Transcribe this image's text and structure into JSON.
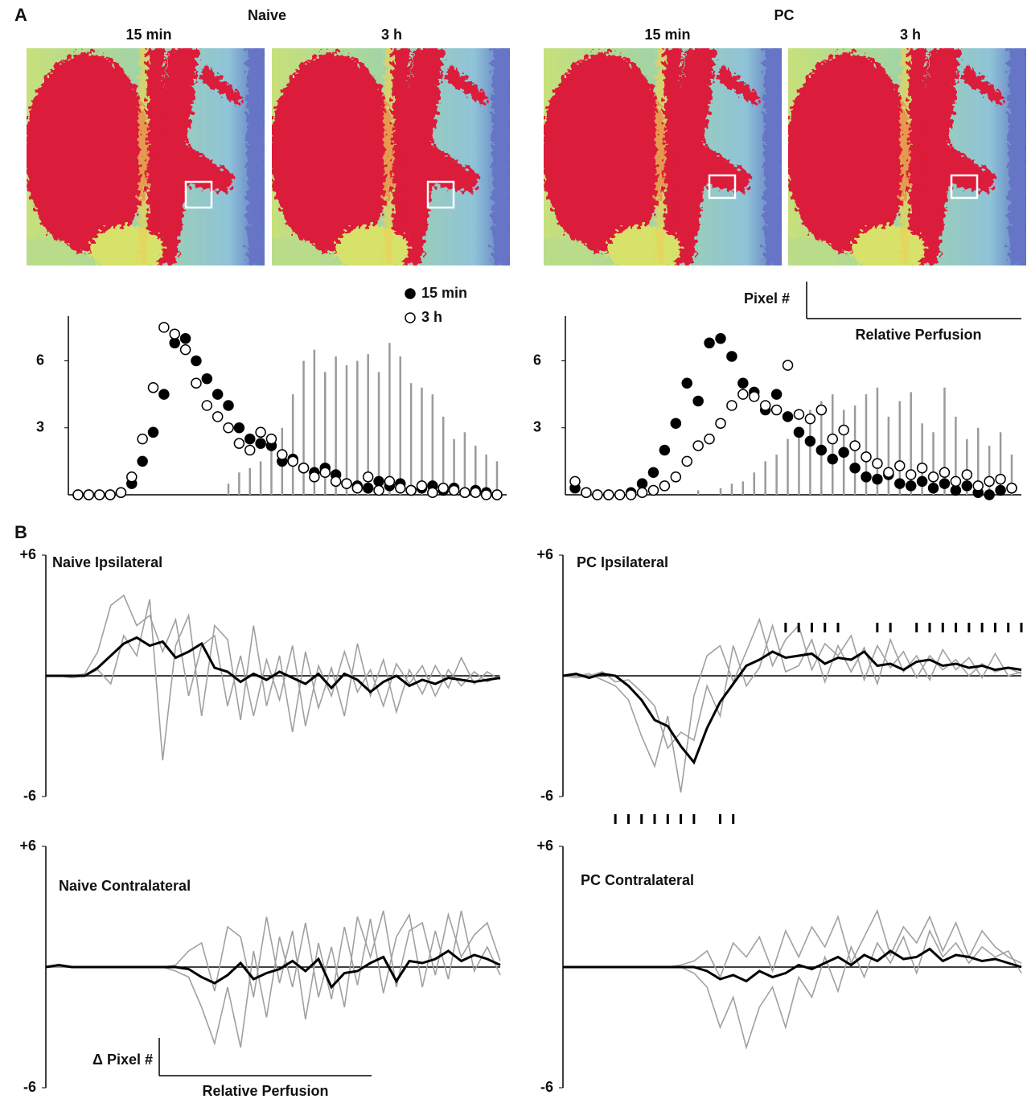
{
  "panel_labels": [
    "A",
    "B"
  ],
  "images": {
    "groups": [
      {
        "title": "Naive",
        "frames": [
          "15 min",
          "3 h"
        ]
      },
      {
        "title": "PC",
        "frames": [
          "15 min",
          "3 h"
        ]
      }
    ]
  },
  "scale_bars": [
    {
      "y_label": "Pixel #",
      "x_label": "Relative Perfusion"
    },
    {
      "y_label": "Δ Pixel #",
      "x_label": "Relative Perfusion"
    }
  ],
  "chart_data": [
    {
      "type": "scatter",
      "legend": "top right",
      "ylim": [
        0,
        8
      ],
      "yticks": [
        6,
        3
      ],
      "series": [
        {
          "name": "15 min",
          "color": "#000000",
          "marker": "filled",
          "values": [
            0,
            0,
            0,
            0,
            0.1,
            0.5,
            1.5,
            2.8,
            4.5,
            6.8,
            7,
            6,
            5.2,
            4.5,
            4,
            3,
            2.5,
            2.3,
            2.2,
            1.5,
            1.6,
            1.2,
            1,
            1.2,
            0.9,
            0.5,
            0.4,
            0.3,
            0.6,
            0.4,
            0.5,
            0.2,
            0.3,
            0.4,
            0.2,
            0.3,
            0.1,
            0.2,
            0.1,
            0
          ]
        },
        {
          "name": "3 h",
          "color": "#000000",
          "marker": "open",
          "values": [
            0,
            0,
            0,
            0,
            0.1,
            0.8,
            2.5,
            4.8,
            7.5,
            7.2,
            6.5,
            5,
            4,
            3.5,
            3,
            2.3,
            2,
            2.8,
            2.5,
            1.8,
            1.5,
            1.2,
            0.8,
            1,
            0.6,
            0.5,
            0.3,
            0.8,
            0.2,
            0.6,
            0.3,
            0.2,
            0.4,
            0.1,
            0.3,
            0.2,
            0.1,
            0.1,
            0,
            0
          ]
        }
      ],
      "bars": {
        "color": "#9a9a9a",
        "values": [
          0,
          0,
          0,
          0,
          0,
          0,
          0,
          0,
          0,
          0,
          0,
          0,
          0,
          0,
          0.5,
          1,
          1.2,
          1.5,
          2,
          3,
          4.5,
          6,
          6.5,
          5.5,
          6.2,
          5.8,
          6,
          6.3,
          5.5,
          6.8,
          6.2,
          5,
          4.8,
          4.5,
          3.5,
          2.5,
          2.8,
          2.2,
          1.8,
          1.5
        ]
      }
    },
    {
      "type": "scatter",
      "ylim": [
        0,
        8
      ],
      "yticks": [
        6,
        3
      ],
      "series": [
        {
          "color": "#000000",
          "marker": "filled",
          "values": [
            0.3,
            0.1,
            0,
            0,
            0,
            0.1,
            0.5,
            1,
            2,
            3.2,
            5,
            4.2,
            6.8,
            7,
            6.2,
            5,
            4.6,
            3.8,
            4.5,
            3.5,
            2.8,
            2.4,
            2,
            1.6,
            1.9,
            1.2,
            0.8,
            0.7,
            0.9,
            0.5,
            0.4,
            0.6,
            0.3,
            0.5,
            0.2,
            0.4,
            0.1,
            0,
            0.2,
            0.3
          ]
        },
        {
          "color": "#000000",
          "marker": "open",
          "values": [
            0.6,
            0.1,
            0,
            0,
            0,
            0,
            0.1,
            0.2,
            0.4,
            0.8,
            1.5,
            2.2,
            2.5,
            3.2,
            4,
            4.5,
            4.4,
            4,
            3.8,
            5.8,
            3.6,
            3.4,
            3.8,
            2.5,
            2.9,
            2.2,
            1.7,
            1.4,
            1,
            1.3,
            0.9,
            1.2,
            0.8,
            1,
            0.6,
            0.9,
            0.4,
            0.6,
            0.7,
            0.3
          ]
        }
      ],
      "bars": {
        "color": "#9a9a9a",
        "values": [
          0,
          0,
          0,
          0,
          0,
          0,
          0,
          0,
          0,
          0,
          0,
          0.2,
          0,
          0.3,
          0.5,
          0.6,
          1,
          1.5,
          1.8,
          2.5,
          3,
          3.8,
          4.2,
          4.5,
          3.8,
          4,
          4.5,
          4.8,
          3.5,
          4.2,
          4.6,
          3.2,
          2.8,
          4.8,
          3.5,
          2.5,
          3,
          2.2,
          2.8,
          1.8
        ]
      }
    },
    {
      "type": "line",
      "title": "Naive Ipsilateral",
      "ylim": [
        -6,
        6
      ],
      "yticks": [
        {
          "value": 6,
          "label": "+6"
        },
        -6
      ],
      "series": [
        {
          "color": "#a0a0a0",
          "values": [
            0,
            0,
            0,
            0.1,
            1.2,
            3.5,
            4,
            2.5,
            3,
            1.2,
            2.8,
            -1,
            1.5,
            2,
            -1.5,
            1,
            -2,
            0.8,
            -1.2,
            1.5,
            -2.5,
            0.5,
            -1,
            1.2,
            -0.8,
            0.3,
            -1.5,
            0.6,
            -0.4,
            0.5,
            -1,
            0.3,
            -0.5,
            0.2,
            -0.3,
            0
          ]
        },
        {
          "color": "#a0a0a0",
          "values": [
            0,
            0,
            -0.1,
            0,
            0.3,
            -0.4,
            2,
            1,
            3.8,
            -4.2,
            1.5,
            3,
            -2,
            2.5,
            1.8,
            -2.2,
            2.5,
            -1.5,
            1,
            -2.8,
            1.2,
            -1.6,
            0.4,
            -2,
            1.6,
            -1,
            0.8,
            -1.8,
            0.3,
            -0.9,
            0.5,
            -0.6,
            0.9,
            -0.4,
            0.2,
            -0.2
          ]
        },
        {
          "color": "#000000",
          "values": [
            0,
            0,
            0,
            0,
            0.4,
            1,
            1.6,
            1.9,
            1.5,
            1.7,
            0.9,
            1.2,
            1.6,
            0.4,
            0.2,
            -0.3,
            0.1,
            -0.2,
            0.2,
            -0.1,
            -0.4,
            0.1,
            -0.6,
            0.1,
            -0.2,
            -0.8,
            -0.3,
            0,
            -0.5,
            -0.2,
            -0.4,
            -0.1,
            -0.2,
            -0.3,
            -0.2,
            -0.1
          ]
        }
      ]
    },
    {
      "type": "line",
      "title": "PC Ipsilateral",
      "ylim": [
        -6,
        6
      ],
      "yticks": [
        {
          "value": 6,
          "label": "+6"
        },
        -6
      ],
      "significance": {
        "above": [
          17,
          18,
          19,
          20,
          21,
          24,
          25,
          27,
          28,
          29,
          30,
          31,
          32,
          33,
          34,
          35
        ],
        "below": [
          4,
          5,
          6,
          7,
          8,
          9,
          10,
          12,
          13
        ]
      },
      "series": [
        {
          "color": "#a0a0a0",
          "values": [
            0,
            0,
            0.1,
            -0.2,
            -0.5,
            -1.2,
            -3,
            -4.5,
            -2,
            -5.8,
            -1,
            1,
            1.5,
            -0.3,
            1.2,
            2.8,
            0.5,
            1.8,
            2.5,
            0.3,
            1.6,
            1,
            2,
            -0.2,
            1.5,
            0.4,
            1.2,
            -0.1,
            1,
            0.3,
            0.8,
            0,
            0.6,
            0.2,
            0.4,
            0.1
          ]
        },
        {
          "color": "#a0a0a0",
          "values": [
            0,
            -0.1,
            0,
            0.2,
            -0.3,
            -0.2,
            -0.8,
            -1.5,
            -3.6,
            -2.8,
            -3.2,
            -0.5,
            -2,
            1.5,
            -0.5,
            0.4,
            2.5,
            0.2,
            0.5,
            1.8,
            -0.3,
            1.5,
            0.2,
            1.4,
            -0.4,
            1.8,
            0.2,
            1,
            -0.2,
            1.3,
            0.3,
            0.9,
            -0.1,
            1.1,
            0,
            0.2
          ]
        },
        {
          "color": "#000000",
          "values": [
            0,
            0.1,
            -0.1,
            0.1,
            0,
            -0.5,
            -1.2,
            -2.2,
            -2.5,
            -3.5,
            -4.3,
            -2.6,
            -1.3,
            -0.4,
            0.5,
            0.8,
            1.2,
            0.9,
            1,
            1.1,
            0.6,
            0.9,
            0.8,
            1.2,
            0.5,
            0.6,
            0.3,
            0.7,
            0.8,
            0.5,
            0.6,
            0.4,
            0.5,
            0.3,
            0.4,
            0.3
          ]
        }
      ]
    },
    {
      "type": "line",
      "title": "Naive Contralateral",
      "ylim": [
        -6,
        6
      ],
      "yticks": [
        {
          "value": 6,
          "label": "+6"
        },
        -6
      ],
      "series": [
        {
          "color": "#a0a0a0",
          "values": [
            0,
            0,
            0,
            0,
            0,
            0,
            0,
            0,
            0,
            0,
            -0.2,
            -0.5,
            -2,
            -3.8,
            -1,
            -4,
            0.8,
            -2.5,
            1.5,
            -1,
            2.2,
            -1.5,
            1,
            -2,
            2.5,
            0.5,
            2.8,
            -1,
            1.8,
            2.2,
            -0.4,
            2.6,
            0.5,
            1.6,
            2.2,
            0.3
          ]
        },
        {
          "color": "#a0a0a0",
          "values": [
            0,
            0,
            0,
            0,
            0,
            0,
            0,
            0,
            0,
            0,
            0.1,
            0.8,
            1.2,
            -1.2,
            2,
            1.5,
            -1.5,
            2.5,
            -0.8,
            1.8,
            -2.6,
            1.2,
            -1.6,
            2,
            -0.9,
            2.4,
            -1.3,
            1.5,
            2.6,
            -1,
            1.8,
            -0.6,
            2.8,
            -0.2,
            1,
            -0.4
          ]
        },
        {
          "color": "#000000",
          "values": [
            0,
            0.1,
            0,
            0,
            0,
            0,
            0,
            0,
            0,
            0,
            0,
            -0.1,
            -0.5,
            -0.8,
            -0.4,
            0.2,
            -0.6,
            -0.3,
            -0.1,
            0.3,
            -0.2,
            0.4,
            -1,
            -0.3,
            -0.2,
            0.2,
            0.5,
            -0.7,
            0.3,
            0.2,
            0.4,
            0.8,
            0.3,
            0.6,
            0.4,
            0.1
          ]
        }
      ]
    },
    {
      "type": "line",
      "title": "PC Contralateral",
      "ylim": [
        -6,
        6
      ],
      "yticks": [
        {
          "value": 6,
          "label": "+6"
        },
        -6
      ],
      "series": [
        {
          "color": "#a0a0a0",
          "values": [
            0,
            0,
            0,
            0,
            0,
            0,
            0,
            0,
            0,
            0,
            -0.3,
            -1,
            -3,
            -1.5,
            -4,
            -2,
            -1,
            -3,
            -0.5,
            -1.5,
            0.5,
            -1.2,
            1,
            -0.5,
            1.2,
            0.2,
            1.5,
            -0.3,
            1.8,
            0.5,
            1.2,
            0.2,
            1,
            0.5,
            0.8,
            -0.3
          ]
        },
        {
          "color": "#a0a0a0",
          "values": [
            0,
            0,
            0,
            0,
            0,
            0,
            0,
            0,
            0,
            0.1,
            0.3,
            0.8,
            -0.5,
            1.2,
            0.5,
            1.5,
            -0.2,
            1.8,
            0.5,
            2,
            1,
            2.5,
            0.2,
            1.5,
            2.8,
            0.6,
            2,
            1.2,
            2.5,
            0.8,
            2.2,
            0.5,
            1.8,
            1,
            0.5,
            0.2
          ]
        },
        {
          "color": "#000000",
          "values": [
            0,
            0,
            0,
            0,
            0,
            0,
            0,
            0,
            0,
            0,
            0,
            -0.2,
            -0.6,
            -0.4,
            -0.7,
            -0.2,
            -0.5,
            -0.3,
            0.1,
            -0.1,
            0.2,
            0.5,
            0.1,
            0.6,
            0.3,
            0.8,
            0.4,
            0.5,
            0.9,
            0.3,
            0.6,
            0.5,
            0.3,
            0.4,
            0.2,
            0
          ]
        }
      ]
    }
  ]
}
